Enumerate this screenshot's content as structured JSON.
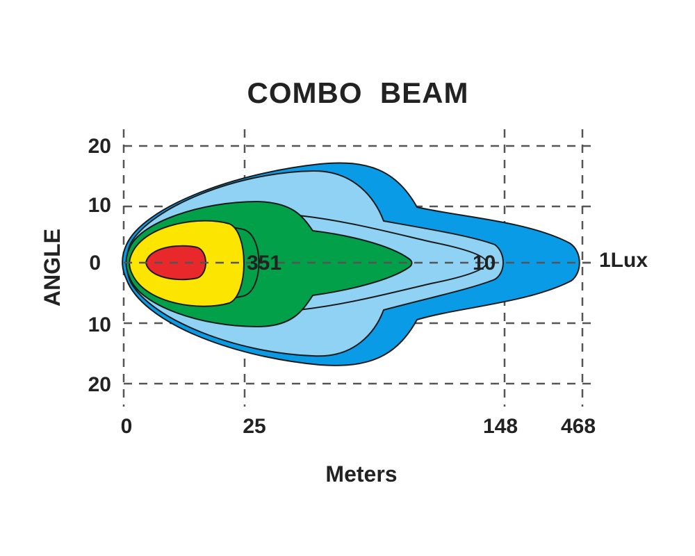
{
  "chart_data": {
    "type": "area",
    "title": "COMBO  BEAM",
    "xlabel": "Meters",
    "ylabel": "ANGLE",
    "x_ticks": [
      "0",
      "25",
      "148",
      "468"
    ],
    "y_ticks": [
      "20",
      "10",
      "0",
      "10",
      "20"
    ],
    "y_tick_values": [
      20,
      10,
      0,
      -10,
      -20
    ],
    "grid": true,
    "zones": [
      {
        "name": "1Lux",
        "color": "#0a9be6",
        "reach": 468
      },
      {
        "name": "",
        "color": "#8fd2f4",
        "reach": null
      },
      {
        "name": "10",
        "color": "#8fd2f4",
        "reach": 148
      },
      {
        "name": "",
        "color": "#03a04a",
        "reach": null
      },
      {
        "name": "351",
        "color": "#03a04a",
        "reach": 25
      },
      {
        "name": "",
        "color": "#fce500",
        "reach": null
      },
      {
        "name": "",
        "color": "#e8282a",
        "reach": null
      }
    ]
  }
}
